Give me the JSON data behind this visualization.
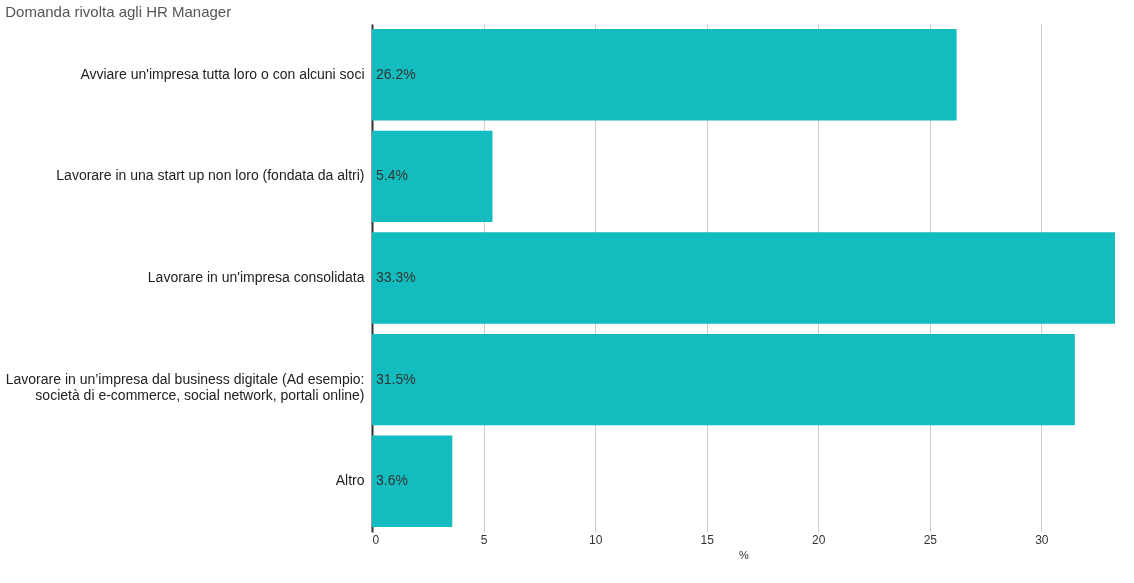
{
  "chart_data": {
    "type": "bar",
    "orientation": "horizontal",
    "title": "Domanda rivolta agli HR Manager",
    "xlabel": "%",
    "categories": [
      "Avviare un'impresa tutta loro o con alcuni soci",
      "Lavorare in una start up non loro (fondata da altri)",
      "Lavorare in un'impresa consolidata",
      "Lavorare in un’impresa dal business digitale (Ad esempio:\nsocietà di e-commerce, social network, portali online)",
      "Altro"
    ],
    "values": [
      26.2,
      5.4,
      33.3,
      31.5,
      3.6
    ],
    "value_labels": [
      "26.2%",
      "5.4%",
      "33.3%",
      "31.5%",
      "3.6%"
    ],
    "color": "#13bcbe",
    "xlim": [
      0,
      33.3
    ],
    "xticks": [
      0,
      5,
      10,
      15,
      20,
      25,
      30
    ],
    "grid": "x"
  }
}
